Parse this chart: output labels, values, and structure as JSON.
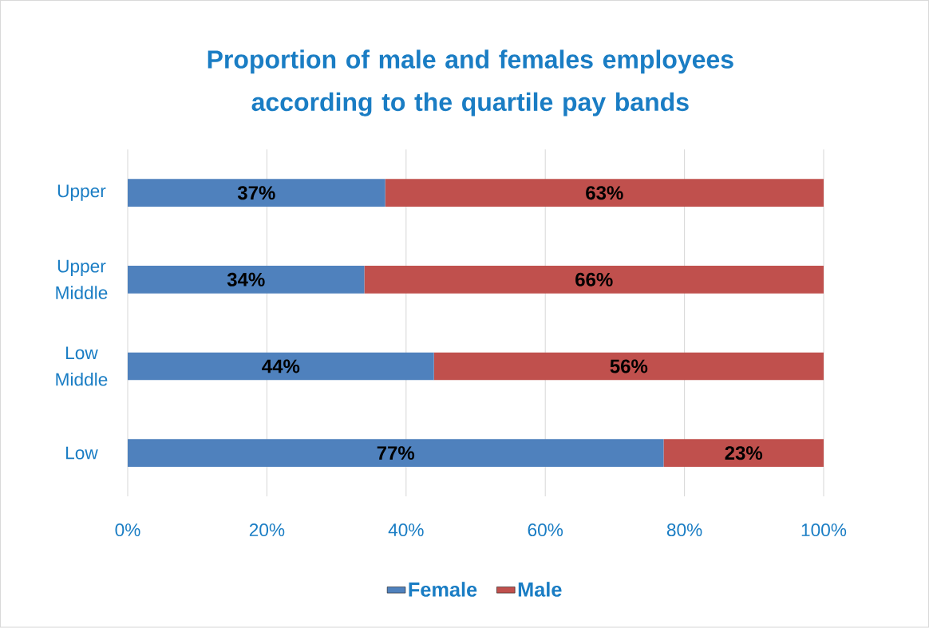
{
  "chart_data": {
    "type": "bar",
    "orientation": "horizontal",
    "stacked": true,
    "title": "Proportion of male and females employees according to the quartile pay bands",
    "categories": [
      "Upper",
      "Upper Middle",
      "Low Middle",
      "Low"
    ],
    "series": [
      {
        "name": "Female",
        "color": "#4f81bd",
        "values": [
          37,
          34,
          44,
          77
        ],
        "value_labels": [
          "37%",
          "34%",
          "44%",
          "77%"
        ]
      },
      {
        "name": "Male",
        "color": "#c0504d",
        "values": [
          63,
          66,
          56,
          23
        ],
        "value_labels": [
          "63%",
          "66%",
          "56%",
          "23%"
        ]
      }
    ],
    "xlim": [
      0,
      100
    ],
    "xticks": [
      {
        "value": 0,
        "label": "0%"
      },
      {
        "value": 20,
        "label": "20%"
      },
      {
        "value": 40,
        "label": "40%"
      },
      {
        "value": 60,
        "label": "60%"
      },
      {
        "value": 80,
        "label": "80%"
      },
      {
        "value": 100,
        "label": "100%"
      }
    ],
    "grid": "x",
    "legend": "bottom"
  }
}
